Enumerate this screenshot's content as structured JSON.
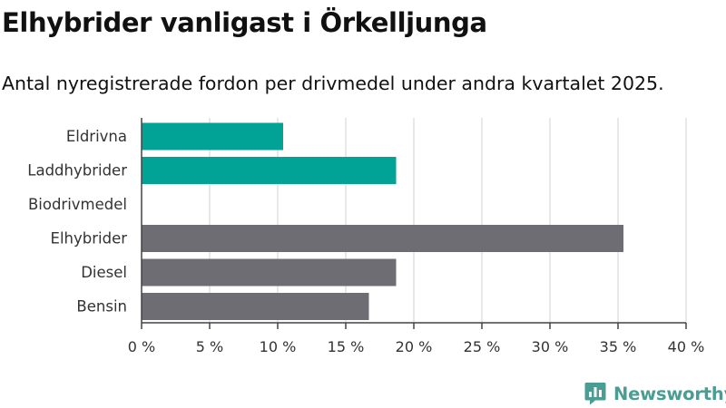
{
  "header": {
    "title": "Elhybrider vanligast i Örkelljunga",
    "subtitle": "Antal nyregistrerade fordon per drivmedel under andra kvartalet 2025."
  },
  "brand": {
    "name": "Newsworthy",
    "icon": "newsworthy-logo-icon",
    "color": "#4a9d93"
  },
  "chart_data": {
    "type": "bar",
    "orientation": "horizontal",
    "categories": [
      "Eldrivna",
      "Laddhybrider",
      "Biodrivmedel",
      "Elhybrider",
      "Diesel",
      "Bensin"
    ],
    "values": [
      10.4,
      18.7,
      0,
      35.4,
      18.7,
      16.7
    ],
    "colors": [
      "#00a396",
      "#00a396",
      "#00a396",
      "#6e6d74",
      "#6e6d74",
      "#6e6d74"
    ],
    "xlim": [
      0,
      40
    ],
    "xticks": [
      0,
      5,
      10,
      15,
      20,
      25,
      30,
      35,
      40
    ],
    "xtick_labels": [
      "0 %",
      "5 %",
      "10 %",
      "15 %",
      "20 %",
      "25 %",
      "30 %",
      "35 %",
      "40 %"
    ],
    "grid": true,
    "legend": false,
    "title": "Elhybrider vanligast i Örkelljunga",
    "subtitle": "Antal nyregistrerade fordon per drivmedel under andra kvartalet 2025.",
    "xlabel": "",
    "ylabel": ""
  }
}
